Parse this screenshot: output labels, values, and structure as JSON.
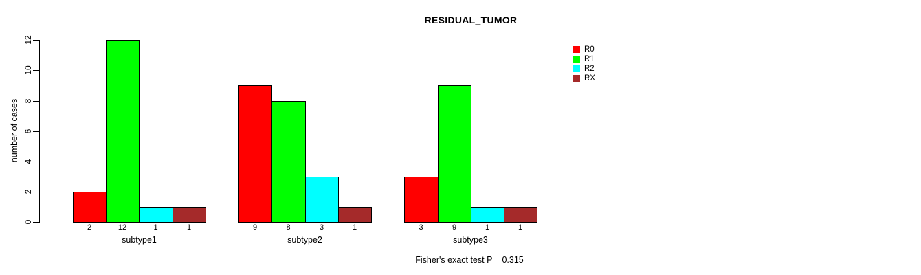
{
  "chart_data": {
    "type": "bar",
    "grouped": true,
    "title": "RESIDUAL_TUMOR",
    "ylabel": "number of cases",
    "annotation": "Fisher's exact test P = 0.315",
    "categories": [
      "subtype1",
      "subtype2",
      "subtype3"
    ],
    "series": [
      {
        "name": "R0",
        "color": "#FF0000",
        "values": [
          2,
          9,
          3
        ]
      },
      {
        "name": "R1",
        "color": "#00FF00",
        "values": [
          12,
          8,
          9
        ]
      },
      {
        "name": "R2",
        "color": "#00FFFF",
        "values": [
          1,
          3,
          1
        ]
      },
      {
        "name": "RX",
        "color": "#A52A2A",
        "values": [
          1,
          1,
          1
        ]
      }
    ],
    "bar_value_labels": [
      [
        "2",
        "12",
        "1",
        "1"
      ],
      [
        "9",
        "8",
        "3",
        "1"
      ],
      [
        "3",
        "9",
        "1",
        "1"
      ]
    ],
    "yticks": [
      0,
      2,
      4,
      6,
      8,
      10,
      12
    ],
    "ylim": [
      0,
      12
    ],
    "grid": false,
    "legend_position": "right",
    "legend_labels": [
      "R0",
      "R1",
      "R2",
      "RX"
    ],
    "legend_colors": [
      "#FF0000",
      "#00FF00",
      "#00FFFF",
      "#A52A2A"
    ]
  }
}
